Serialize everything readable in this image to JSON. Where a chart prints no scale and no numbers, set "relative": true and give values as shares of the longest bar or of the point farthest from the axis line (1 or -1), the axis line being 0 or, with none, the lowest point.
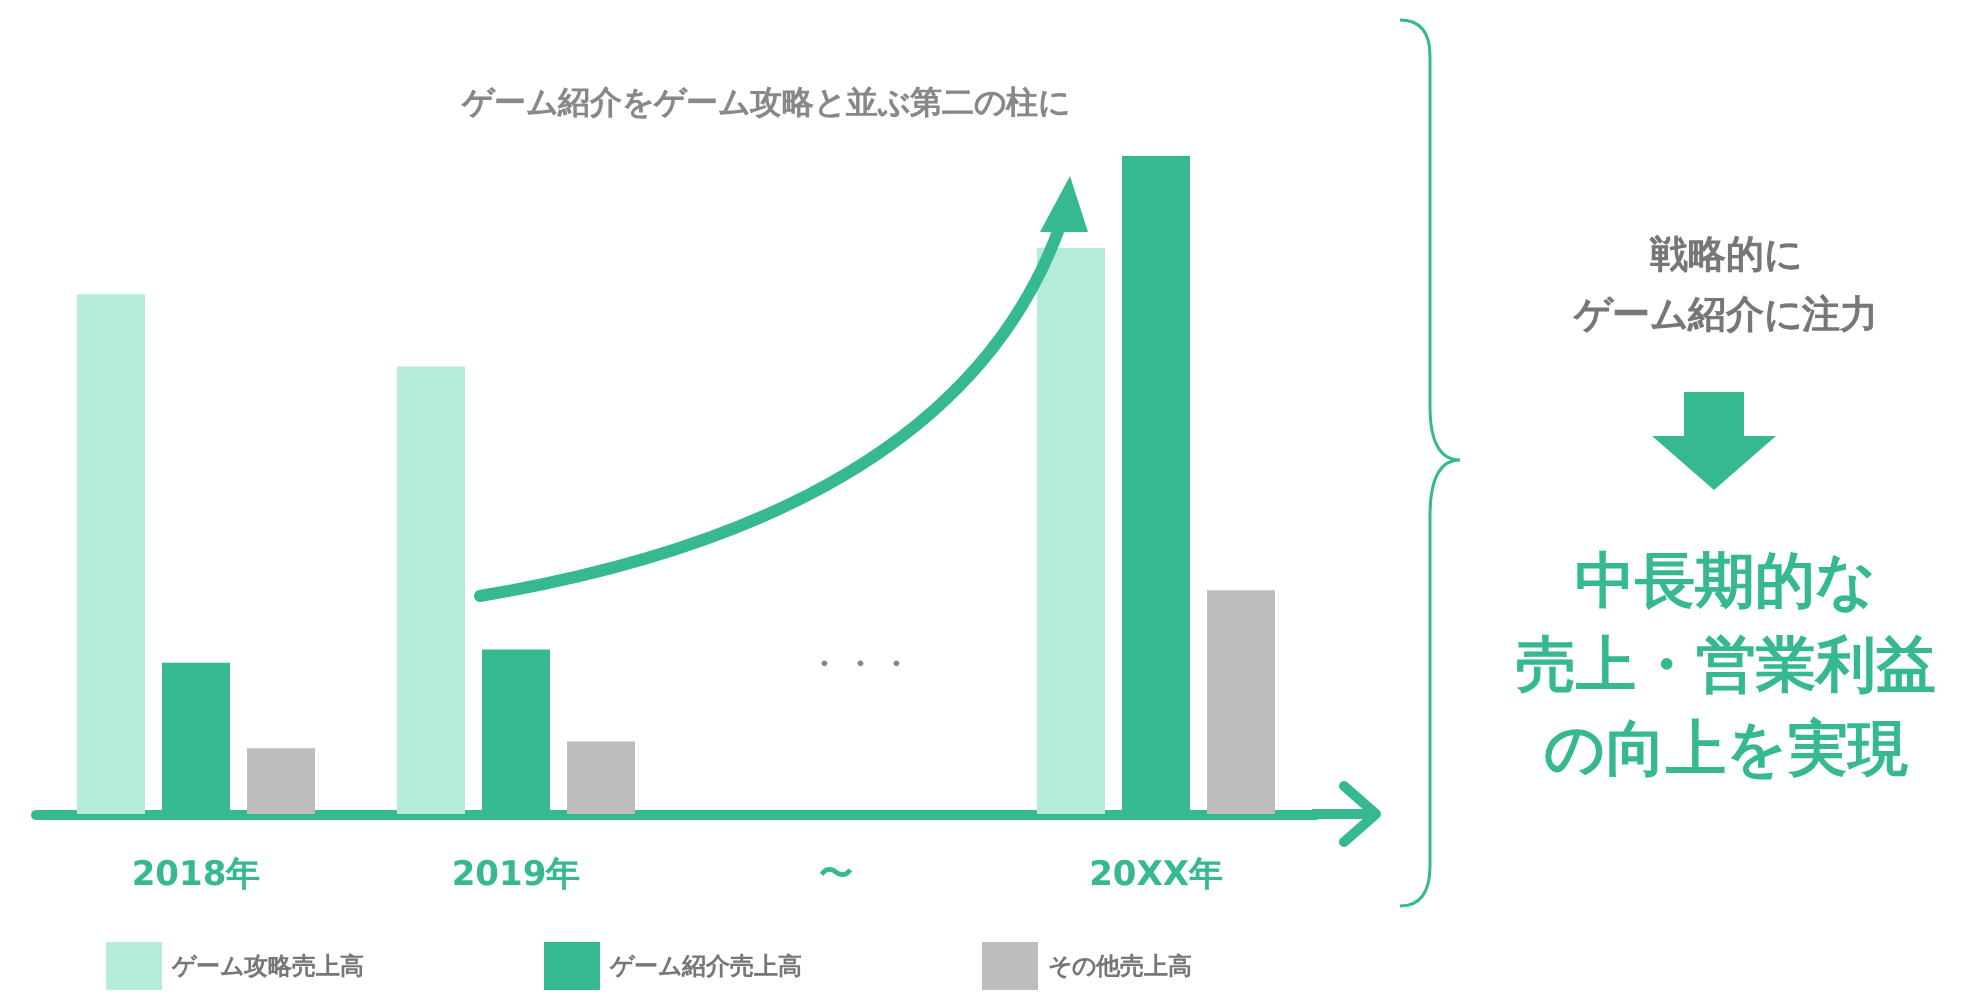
{
  "chart_data": {
    "type": "bar",
    "title": "ゲーム紹介をゲーム攻略と並ぶ第二の柱に",
    "relative": true,
    "categories": [
      "2018年",
      "2019年",
      "〜",
      "20XX年"
    ],
    "series": [
      {
        "name": "ゲーム攻略売上高",
        "color": "#b5ebd9",
        "values": [
          0.79,
          0.68,
          null,
          0.86
        ]
      },
      {
        "name": "ゲーム紹介売上高",
        "color": "#36b991",
        "values": [
          0.23,
          0.25,
          null,
          1
        ]
      },
      {
        "name": "その他売上高",
        "color": "#bdbdbd",
        "values": [
          0.1,
          0.11,
          null,
          0.34
        ]
      }
    ],
    "annotations": [
      "・・・",
      "戦略的に",
      "ゲーム紹介に注力",
      "中長期的な",
      "売上・営業利益",
      "の向上を実現"
    ],
    "legend": "bottom left",
    "grid": false
  }
}
